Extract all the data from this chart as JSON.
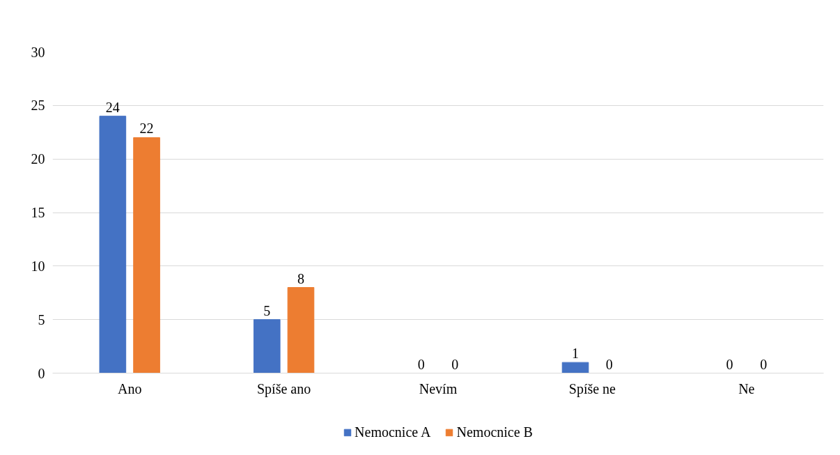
{
  "chart_data": {
    "type": "bar",
    "categories": [
      "Ano",
      "Spíše ano",
      "Nevím",
      "Spíše ne",
      "Ne"
    ],
    "series": [
      {
        "name": "Nemocnice A",
        "color": "#4472c4",
        "values": [
          24,
          5,
          0,
          1,
          0
        ]
      },
      {
        "name": "Nemocnice B",
        "color": "#ed7d31",
        "values": [
          22,
          8,
          0,
          0,
          0
        ]
      }
    ],
    "ylim": [
      0,
      30
    ],
    "yticks": [
      0,
      5,
      10,
      15,
      20,
      25,
      30
    ],
    "grid": "y",
    "legend": "bottom",
    "data_labels": true
  }
}
